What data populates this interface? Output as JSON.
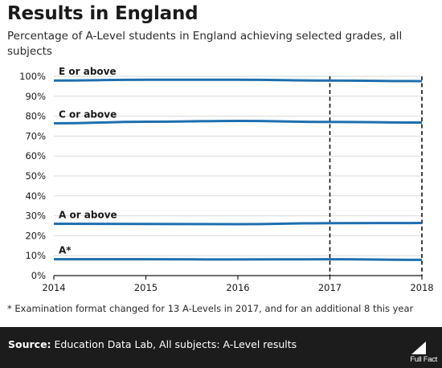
{
  "header": {
    "title": "Results in England",
    "subtitle": "Percentage of A-Level students in England achieving selected grades, all subjects"
  },
  "footnote": "* Examination format changed for 13 A-Levels in 2017, and for an additional 8 this year",
  "footer": {
    "source_label": "Source:",
    "source_text": "Education Data Lab, All subjects: A-Level results",
    "logo_text": "Full Fact"
  },
  "colors": {
    "series": "#1e6fb0",
    "grid": "#d9d9d9",
    "axis": "#1a1a1a",
    "footer_bg": "#1c1c1c"
  },
  "chart_data": {
    "type": "line",
    "x": [
      2014,
      2015,
      2016,
      2017,
      2018
    ],
    "x_tick_labels": [
      "2014",
      "2015",
      "2016",
      "2017",
      "2018"
    ],
    "ylim": [
      0,
      100
    ],
    "y_ticks": [
      0,
      10,
      20,
      30,
      40,
      50,
      60,
      70,
      80,
      90,
      100
    ],
    "y_tick_labels": [
      "0%",
      "10%",
      "20%",
      "30%",
      "40%",
      "50%",
      "60%",
      "70%",
      "80%",
      "90%",
      "100%"
    ],
    "grid": "horizontal",
    "markers_x": [
      2017,
      2018
    ],
    "series": [
      {
        "name": "E or above",
        "values": [
          97.9,
          98.3,
          98.3,
          97.9,
          97.6
        ]
      },
      {
        "name": "C or above",
        "values": [
          76.4,
          77.2,
          77.6,
          77.1,
          76.8
        ]
      },
      {
        "name": "A or above",
        "values": [
          26.0,
          25.9,
          25.8,
          26.3,
          26.4
        ]
      },
      {
        "name": "A*",
        "values": [
          8.2,
          8.2,
          8.1,
          8.2,
          7.9
        ]
      }
    ]
  }
}
